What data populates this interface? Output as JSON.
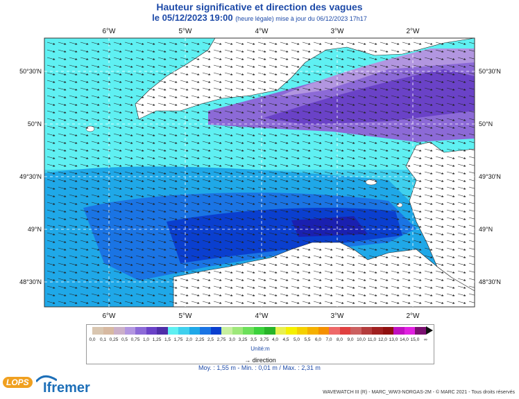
{
  "header": {
    "title": "Hauteur significative et direction des vagues",
    "datetime": "le 05/12/2023 19:00",
    "update_note": "(heure légale) mise à jour du 06/12/2023 17h17"
  },
  "map": {
    "lon_labels": [
      "6°W",
      "5°W",
      "4°W",
      "3°W",
      "2°W"
    ],
    "lat_labels": [
      "50°30'N",
      "50°N",
      "49°30'N",
      "49°N",
      "48°30'N"
    ]
  },
  "legend": {
    "labels": [
      "0,0",
      "0,1",
      "0,25",
      "0,5",
      "0,75",
      "1,0",
      "1,25",
      "1,5",
      "1,75",
      "2,0",
      "2,25",
      "2,5",
      "2,75",
      "3,0",
      "3,25",
      "3,5",
      "3,75",
      "4,0",
      "4,5",
      "5,0",
      "5,5",
      "6,0",
      "7,0",
      "8,0",
      "9,0",
      "10,0",
      "11,0",
      "12,0",
      "13,0",
      "14,0",
      "15,0",
      "∞"
    ],
    "colors": [
      "#d9c6b0",
      "#d7b9a1",
      "#cbb0c8",
      "#b296e0",
      "#8c6ad7",
      "#6a42c7",
      "#4f2ea8",
      "#5ff0f2",
      "#3fd0ee",
      "#1fa8e8",
      "#1a74e4",
      "#0a3fcf",
      "#c8f0a0",
      "#9ee87a",
      "#6ce05a",
      "#3cd23c",
      "#28b428",
      "#e8f050",
      "#f5f000",
      "#f5d000",
      "#f5b000",
      "#f59000",
      "#ee6868",
      "#e04040",
      "#cc6060",
      "#b43c3c",
      "#a02020",
      "#901010",
      "#c010c0",
      "#e020e0",
      "#7a1070"
    ],
    "unit": "Unité:m",
    "direction_label": "direction"
  },
  "stats": "Moy. : 1,55 m   -   Min. : 0,01 m / Max. : 2,31 m",
  "footer": "WAVEWATCH III (R) - MARC_WW3-NORGAS-2M - © MARC 2021 - Tous droits réservés",
  "logos": {
    "lops": "LOPS",
    "ifremer": "Ifremer"
  }
}
